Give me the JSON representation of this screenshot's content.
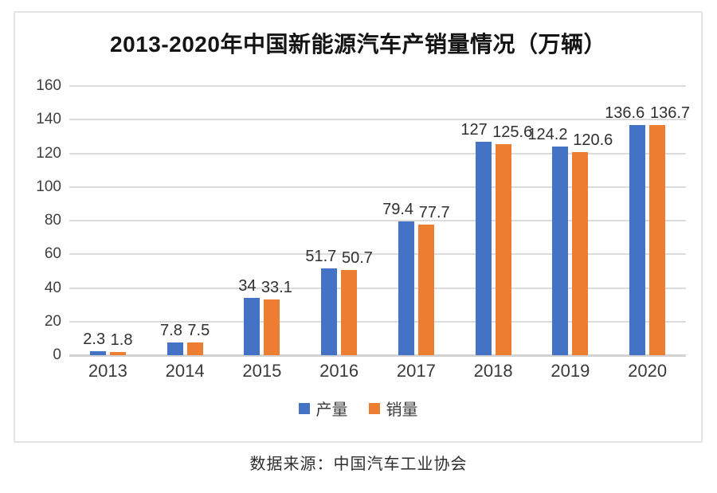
{
  "chart_data": {
    "type": "bar",
    "title": "2013-2020年中国新能源汽车产销量情况（万辆）",
    "categories": [
      "2013",
      "2014",
      "2015",
      "2016",
      "2017",
      "2018",
      "2019",
      "2020"
    ],
    "series": [
      {
        "name": "产量",
        "color": "#4472C4",
        "values": [
          2.3,
          7.8,
          34,
          51.7,
          79.4,
          127,
          124.2,
          136.6
        ]
      },
      {
        "name": "销量",
        "color": "#ED7D31",
        "values": [
          1.8,
          7.5,
          33.1,
          50.7,
          77.7,
          125.6,
          120.6,
          136.7
        ]
      }
    ],
    "ylim": [
      0,
      160
    ],
    "yticks": [
      0,
      20,
      40,
      60,
      80,
      100,
      120,
      140,
      160
    ],
    "grid": true,
    "legend_position": "bottom",
    "xlabel": "",
    "ylabel": ""
  },
  "footer": {
    "source": "数据来源：中国汽车工业协会"
  },
  "theme": {
    "grid_color": "#dcdcdc",
    "axis_line_color": "#d2d2d2",
    "tick_text_color": "#3f3f3f",
    "title_color": "#141414",
    "card_border_color": "#e3e3e3",
    "background": "#ffffff"
  }
}
